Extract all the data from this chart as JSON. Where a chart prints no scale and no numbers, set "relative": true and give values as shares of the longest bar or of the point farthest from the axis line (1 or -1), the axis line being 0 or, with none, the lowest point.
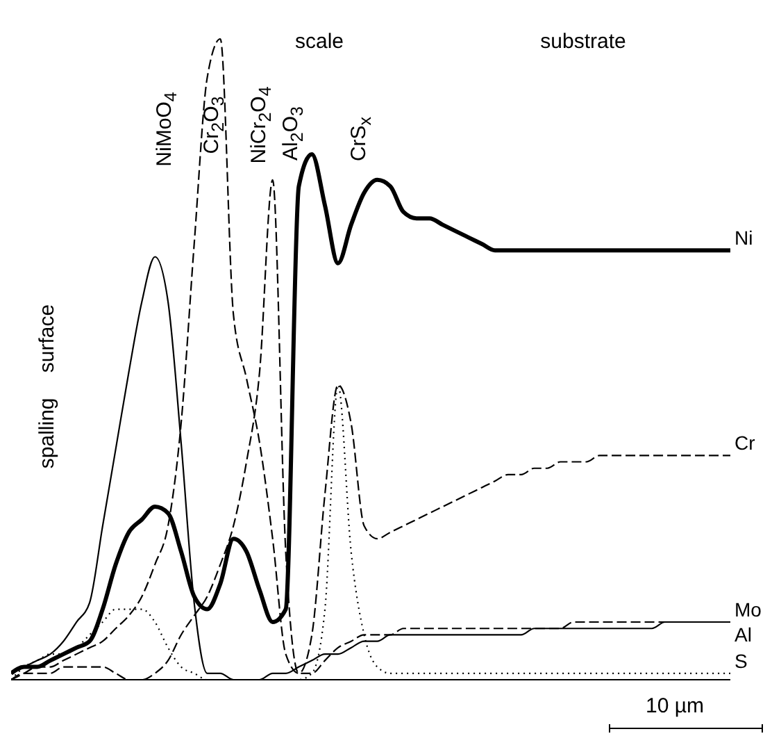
{
  "chart_data": {
    "type": "line",
    "relative": true,
    "categories": [
      null,
      null,
      null,
      null,
      null,
      null,
      null,
      null,
      null,
      null,
      null,
      null,
      null,
      null,
      null,
      null,
      null,
      null,
      null,
      null,
      null,
      null,
      null,
      null,
      null,
      null,
      null,
      null,
      null,
      null,
      null,
      null,
      null,
      null,
      null,
      null,
      null,
      null,
      null,
      null,
      null,
      null,
      null,
      null,
      null,
      null,
      null,
      null,
      null,
      null,
      null,
      null,
      null,
      null,
      null,
      null
    ],
    "series": [
      {
        "name": "Ni",
        "color": "#000000",
        "line_style": "solid",
        "values": [
          0.01,
          0.02,
          0.02,
          0.03,
          0.04,
          0.05,
          0.06,
          0.11,
          0.18,
          0.23,
          0.25,
          0.27,
          0.26,
          0.2,
          0.13,
          0.11,
          0.15,
          0.22,
          0.2,
          0.14,
          0.09,
          0.11,
          0.77,
          0.82,
          0.74,
          0.65,
          0.71,
          0.76,
          0.78,
          0.77,
          0.73,
          0.72,
          0.72,
          0.71,
          0.7,
          0.69,
          0.68,
          0.67,
          0.67,
          0.67,
          0.67,
          0.67,
          0.67,
          0.67,
          0.67,
          0.67,
          0.67,
          0.67,
          0.67,
          0.67,
          0.67,
          0.67,
          0.67,
          0.67,
          0.67,
          0.67
        ]
      },
      {
        "name": "Cr",
        "color": "#000000",
        "line_style": "dashed",
        "values": [
          0.0,
          0.01,
          0.02,
          0.02,
          0.03,
          0.04,
          0.05,
          0.06,
          0.08,
          0.1,
          0.13,
          0.18,
          0.24,
          0.4,
          0.68,
          0.94,
          1.0,
          0.57,
          0.47,
          0.37,
          0.22,
          0.04,
          0.01,
          0.07,
          0.29,
          0.46,
          0.4,
          0.24,
          0.22,
          0.23,
          0.24,
          0.25,
          0.26,
          0.27,
          0.28,
          0.29,
          0.3,
          0.31,
          0.32,
          0.32,
          0.33,
          0.33,
          0.34,
          0.34,
          0.34,
          0.35,
          0.35,
          0.35,
          0.35,
          0.35,
          0.35,
          0.35,
          0.35,
          0.35,
          0.35,
          0.35
        ]
      },
      {
        "name": "Mo",
        "color": "#000000",
        "line_style": "solid",
        "values": [
          0.01,
          0.02,
          0.03,
          0.04,
          0.06,
          0.09,
          0.12,
          0.24,
          0.36,
          0.48,
          0.59,
          0.66,
          0.59,
          0.37,
          0.12,
          0.01,
          0.01,
          0.0,
          0.0,
          0.0,
          0.01,
          0.01,
          0.02,
          0.03,
          0.04,
          0.04,
          0.05,
          0.06,
          0.06,
          0.07,
          0.07,
          0.07,
          0.07,
          0.07,
          0.07,
          0.07,
          0.07,
          0.07,
          0.07,
          0.07,
          0.08,
          0.08,
          0.08,
          0.08,
          0.08,
          0.08,
          0.08,
          0.08,
          0.08,
          0.08,
          0.09,
          0.09,
          0.09,
          0.09,
          0.09,
          0.09
        ]
      },
      {
        "name": "Al",
        "color": "#000000",
        "line_style": "dashed",
        "values": [
          0.0,
          0.01,
          0.01,
          0.01,
          0.02,
          0.02,
          0.02,
          0.02,
          0.01,
          0.0,
          0.0,
          0.01,
          0.03,
          0.07,
          0.1,
          0.13,
          0.18,
          0.24,
          0.34,
          0.48,
          0.78,
          0.2,
          0.01,
          0.01,
          0.03,
          0.05,
          0.06,
          0.07,
          0.07,
          0.07,
          0.08,
          0.08,
          0.08,
          0.08,
          0.08,
          0.08,
          0.08,
          0.08,
          0.08,
          0.08,
          0.08,
          0.08,
          0.08,
          0.09,
          0.09,
          0.09,
          0.09,
          0.09,
          0.09,
          0.09,
          0.09,
          0.09,
          0.09,
          0.09,
          0.09,
          0.09
        ]
      },
      {
        "name": "S",
        "color": "#000000",
        "line_style": "dotted",
        "values": [
          0.0,
          0.02,
          0.03,
          0.04,
          0.04,
          0.05,
          0.07,
          0.09,
          0.11,
          0.11,
          0.11,
          0.09,
          0.05,
          0.02,
          0.01,
          0.0,
          0.0,
          0.0,
          0.0,
          0.0,
          0.0,
          0.0,
          0.0,
          0.01,
          0.11,
          0.46,
          0.2,
          0.07,
          0.02,
          0.01,
          0.01,
          0.01,
          0.01,
          0.01,
          0.01,
          0.01,
          0.01,
          0.01,
          0.01,
          0.01,
          0.01,
          0.01,
          0.01,
          0.01,
          0.01,
          0.01,
          0.01,
          0.01,
          0.01,
          0.01,
          0.01,
          0.01,
          0.01,
          0.01,
          0.01,
          0.01
        ]
      }
    ],
    "annotations": [
      "scale",
      "substrate",
      "spalling surface",
      "NiMoO$_{4}$",
      "Cr$_{2}$O$_{3}$",
      "NiCr$_{2}$O$_{4}$",
      "Al$_{2}$O$_{3}$",
      "CrS$_{x}$",
      "10 µm"
    ]
  }
}
